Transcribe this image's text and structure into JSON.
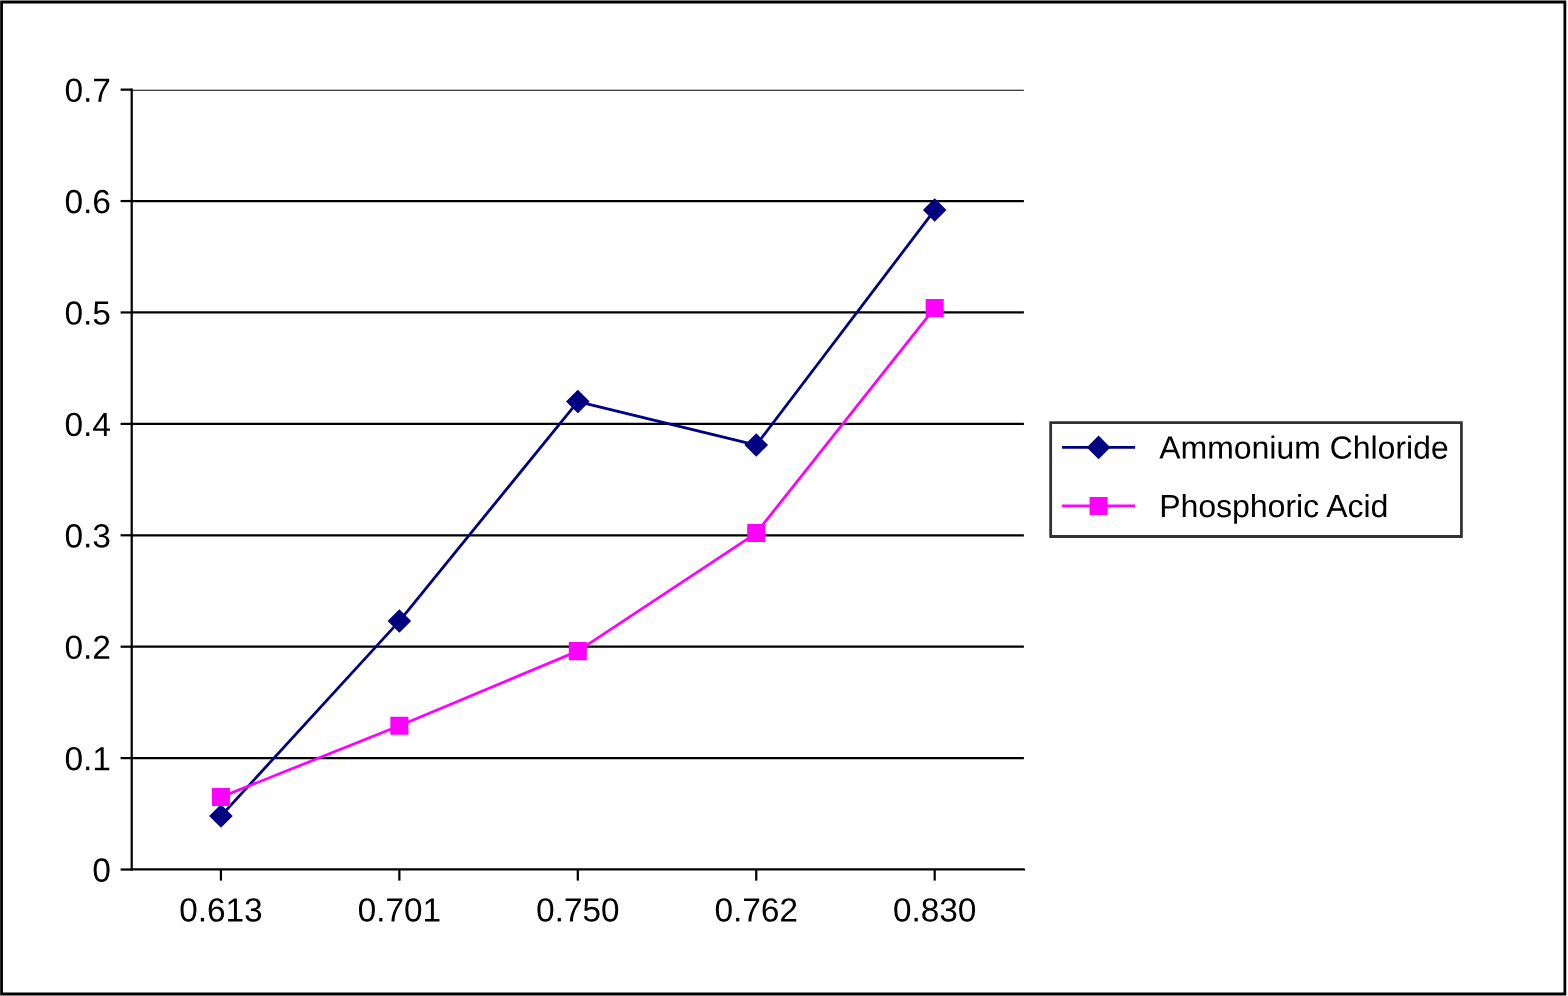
{
  "chart_data": {
    "type": "line",
    "categories": [
      "0.613",
      "0.701",
      "0.750",
      "0.762",
      "0.830"
    ],
    "series": [
      {
        "name": "Ammonium Chloride",
        "color": "#000080",
        "marker": "diamond",
        "values": [
          0.048,
          0.223,
          0.42,
          0.381,
          0.592
        ]
      },
      {
        "name": "Phosphoric Acid",
        "color": "#ff00ff",
        "marker": "square",
        "values": [
          0.065,
          0.129,
          0.196,
          0.302,
          0.504
        ]
      }
    ],
    "ylim": [
      0,
      0.7
    ],
    "yticks": [
      0,
      0.1,
      0.2,
      0.3,
      0.4,
      0.5,
      0.6,
      0.7
    ],
    "grid": "y",
    "legend": "right",
    "line_style": "solid"
  }
}
